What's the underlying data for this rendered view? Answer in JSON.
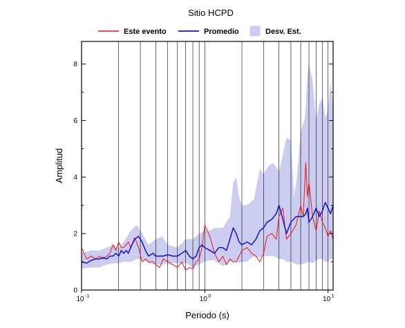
{
  "chart_data": {
    "type": "line",
    "title": "Sitio HCPD",
    "xlabel": "Periodo (s)",
    "ylabel": "Amplitud",
    "x_scale": "log",
    "xlim": [
      0.1,
      11
    ],
    "ylim": [
      0,
      8.8
    ],
    "x_ticks": [
      {
        "value": 0.1,
        "base": "10",
        "exp": "-1"
      },
      {
        "value": 1,
        "base": "10",
        "exp": "0"
      },
      {
        "value": 10,
        "base": "10",
        "exp": "1"
      }
    ],
    "y_ticks": [
      0,
      2,
      4,
      6,
      8
    ],
    "grid": "vertical",
    "legend_position": "top",
    "legend": [
      {
        "label": "Este evento",
        "kind": "line",
        "color": "#ee1111"
      },
      {
        "label": "Promedio",
        "kind": "line",
        "color": "#1111cc"
      },
      {
        "label": "Desv. Est.",
        "kind": "band",
        "color": "#ccccf0"
      }
    ],
    "series": [
      {
        "name": "Este evento",
        "color": "#ee1111",
        "x": [
          0.1,
          0.11,
          0.12,
          0.13,
          0.14,
          0.15,
          0.16,
          0.17,
          0.18,
          0.19,
          0.2,
          0.21,
          0.22,
          0.23,
          0.24,
          0.25,
          0.27,
          0.29,
          0.31,
          0.33,
          0.35,
          0.38,
          0.4,
          0.43,
          0.46,
          0.5,
          0.55,
          0.6,
          0.65,
          0.7,
          0.75,
          0.8,
          0.85,
          0.9,
          0.95,
          1.0,
          1.1,
          1.2,
          1.3,
          1.4,
          1.5,
          1.6,
          1.7,
          1.8,
          1.9,
          2.0,
          2.2,
          2.4,
          2.6,
          2.8,
          3.0,
          3.2,
          3.5,
          3.8,
          4.0,
          4.3,
          4.6,
          5.0,
          5.5,
          6.0,
          6.3,
          6.6,
          6.8,
          7.0,
          7.5,
          8.0,
          8.5,
          9.0,
          9.5,
          10,
          10.5,
          11
        ],
        "y": [
          1.5,
          1.1,
          1.2,
          1.1,
          1.2,
          1.1,
          1.2,
          1.3,
          1.6,
          1.4,
          1.7,
          1.5,
          1.5,
          1.6,
          1.7,
          1.5,
          1.85,
          1.5,
          1.0,
          1.1,
          1.0,
          1.0,
          0.9,
          0.8,
          1.1,
          1.0,
          0.9,
          0.8,
          1.0,
          0.7,
          0.8,
          0.75,
          1.0,
          1.1,
          1.5,
          2.3,
          1.9,
          1.3,
          1.0,
          1.2,
          0.9,
          1.1,
          1.0,
          1.0,
          1.2,
          1.4,
          1.5,
          1.3,
          1.2,
          1.0,
          1.3,
          1.9,
          2.0,
          1.8,
          2.6,
          2.9,
          1.8,
          2.0,
          2.3,
          3.0,
          2.6,
          4.5,
          3.3,
          3.8,
          2.6,
          2.1,
          2.8,
          2.4,
          2.2,
          1.9,
          2.1,
          1.8
        ]
      },
      {
        "name": "Promedio",
        "color": "#1111cc",
        "x": [
          0.1,
          0.11,
          0.12,
          0.13,
          0.14,
          0.15,
          0.16,
          0.17,
          0.18,
          0.19,
          0.2,
          0.21,
          0.22,
          0.23,
          0.24,
          0.25,
          0.27,
          0.29,
          0.31,
          0.33,
          0.35,
          0.38,
          0.4,
          0.43,
          0.46,
          0.5,
          0.55,
          0.6,
          0.65,
          0.7,
          0.75,
          0.8,
          0.85,
          0.9,
          0.95,
          1.0,
          1.1,
          1.2,
          1.3,
          1.4,
          1.5,
          1.6,
          1.7,
          1.8,
          1.9,
          2.0,
          2.2,
          2.4,
          2.6,
          2.8,
          3.0,
          3.2,
          3.5,
          3.8,
          4.0,
          4.3,
          4.6,
          5.0,
          5.5,
          6.0,
          6.3,
          6.6,
          6.8,
          7.0,
          7.5,
          8.0,
          8.5,
          9.0,
          9.5,
          10,
          10.5,
          11
        ],
        "y": [
          1.0,
          0.95,
          1.05,
          1.1,
          1.1,
          1.15,
          1.1,
          1.2,
          1.2,
          1.3,
          1.2,
          1.4,
          1.3,
          1.4,
          1.3,
          1.5,
          1.8,
          1.9,
          1.7,
          1.4,
          1.2,
          1.3,
          1.2,
          1.2,
          1.2,
          1.25,
          1.2,
          1.2,
          1.3,
          1.4,
          1.2,
          1.1,
          1.2,
          1.5,
          1.6,
          1.5,
          1.4,
          1.3,
          1.5,
          1.5,
          1.4,
          1.8,
          2.2,
          2.0,
          1.7,
          1.6,
          1.7,
          1.6,
          1.8,
          2.1,
          2.2,
          2.4,
          2.5,
          2.7,
          3.0,
          2.5,
          2.0,
          2.4,
          2.6,
          2.6,
          2.6,
          2.7,
          2.9,
          2.4,
          2.6,
          2.9,
          2.6,
          2.8,
          3.1,
          2.9,
          2.7,
          3.0
        ]
      }
    ],
    "band": {
      "name": "Desv. Est.",
      "color": "#ccccf0",
      "x": [
        0.1,
        0.12,
        0.14,
        0.16,
        0.18,
        0.2,
        0.22,
        0.25,
        0.28,
        0.3,
        0.35,
        0.4,
        0.45,
        0.5,
        0.6,
        0.7,
        0.8,
        0.9,
        1.0,
        1.1,
        1.2,
        1.4,
        1.6,
        1.7,
        1.8,
        1.9,
        2.0,
        2.2,
        2.5,
        2.8,
        3.0,
        3.3,
        3.6,
        4.0,
        4.3,
        4.6,
        5.0,
        5.3,
        5.6,
        6.0,
        6.5,
        6.8,
        7.0,
        7.5,
        8.0,
        8.5,
        9.0,
        9.5,
        10,
        10.5,
        11
      ],
      "upper": [
        1.3,
        1.4,
        1.4,
        1.5,
        1.6,
        1.5,
        1.7,
        2.1,
        2.3,
        2.1,
        1.6,
        1.8,
        1.9,
        1.6,
        1.5,
        1.8,
        1.8,
        2.0,
        2.1,
        2.1,
        2.2,
        2.2,
        2.6,
        3.8,
        4.0,
        3.3,
        3.0,
        3.0,
        3.2,
        4.3,
        4.1,
        4.4,
        4.5,
        4.2,
        4.8,
        5.4,
        5.3,
        3.3,
        4.0,
        5.6,
        6.1,
        7.6,
        8.0,
        7.4,
        6.0,
        6.6,
        6.8,
        6.1,
        6.4,
        7.4,
        6.4
      ],
      "lower": [
        0.75,
        0.8,
        0.8,
        0.9,
        0.95,
        0.95,
        1.0,
        1.0,
        1.1,
        1.1,
        0.95,
        0.9,
        0.9,
        0.95,
        0.95,
        0.95,
        0.8,
        0.9,
        1.0,
        1.05,
        1.05,
        0.85,
        1.0,
        1.0,
        1.0,
        0.95,
        1.0,
        1.0,
        1.2,
        1.15,
        1.2,
        1.2,
        1.2,
        1.1,
        1.1,
        1.0,
        1.0,
        0.95,
        0.9,
        0.9,
        0.95,
        1.0,
        1.0,
        0.95,
        1.05,
        1.1,
        1.1,
        1.0,
        1.0,
        1.1,
        1.1
      ]
    }
  }
}
